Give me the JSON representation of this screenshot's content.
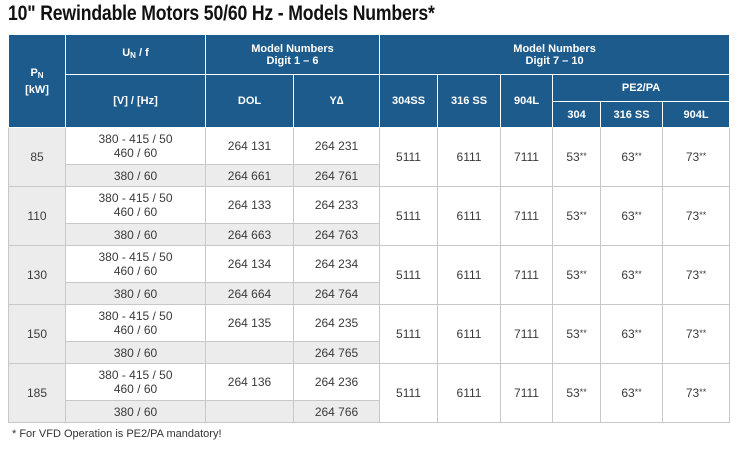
{
  "title": "10\" Rewindable Motors 50/60 Hz - Models Numbers*",
  "headers": {
    "pn_main": "P",
    "pn_sub": "N",
    "pn_unit": "[kW]",
    "un_main": "U",
    "un_sub": "N",
    "un_suffix": " / f",
    "un_unit": "[V] / [Hz]",
    "model_1_6_line1": "Model Numbers",
    "model_1_6_line2": "Digit 1 – 6",
    "dol": "DOL",
    "yd": "Y∆",
    "model_7_10_line1": "Model Numbers",
    "model_7_10_line2": "Digit 7 – 10",
    "ss304": "304SS",
    "ss316": "316 SS",
    "l904": "904L",
    "pe2pa": "PE2/PA",
    "pe_304": "304",
    "pe_316": "316 SS",
    "pe_904": "904L"
  },
  "rows": [
    {
      "pn": "85",
      "volt_a1": "380 - 415 / 50",
      "volt_a2": "460 / 60",
      "volt_b": "380 / 60",
      "dol_a": "264 131",
      "dol_b": "264 661",
      "yd_a": "264 231",
      "yd_b": "264 761",
      "ss304": "5111",
      "ss316": "6111",
      "l904": "7111",
      "pe304": "53",
      "pe316": "63",
      "pe904": "73",
      "stars": "**"
    },
    {
      "pn": "110",
      "volt_a1": "380 - 415 / 50",
      "volt_a2": "460 / 60",
      "volt_b": "380 / 60",
      "dol_a": "264 133",
      "dol_b": "264 663",
      "yd_a": "264 233",
      "yd_b": "264 763",
      "ss304": "5111",
      "ss316": "6111",
      "l904": "7111",
      "pe304": "53",
      "pe316": "63",
      "pe904": "73",
      "stars": "**"
    },
    {
      "pn": "130",
      "volt_a1": "380 - 415 / 50",
      "volt_a2": "460 / 60",
      "volt_b": "380 / 60",
      "dol_a": "264 134",
      "dol_b": "264 664",
      "yd_a": "264 234",
      "yd_b": "264 764",
      "ss304": "5111",
      "ss316": "6111",
      "l904": "7111",
      "pe304": "53",
      "pe316": "63",
      "pe904": "73",
      "stars": "**"
    },
    {
      "pn": "150",
      "volt_a1": "380 - 415 / 50",
      "volt_a2": "460 / 60",
      "volt_b": "380 / 60",
      "dol_a": "264 135",
      "dol_b": "",
      "yd_a": "264 235",
      "yd_b": "264 765",
      "ss304": "5111",
      "ss316": "6111",
      "l904": "7111",
      "pe304": "53",
      "pe316": "63",
      "pe904": "73",
      "stars": "**"
    },
    {
      "pn": "185",
      "volt_a1": "380 - 415 / 50",
      "volt_a2": "460 / 60",
      "volt_b": "380 / 60",
      "dol_a": "264 136",
      "dol_b": "",
      "yd_a": "264 236",
      "yd_b": "264 766",
      "ss304": "5111",
      "ss316": "6111",
      "l904": "7111",
      "pe304": "53",
      "pe316": "63",
      "pe904": "73",
      "stars": "**"
    }
  ],
  "footnote": "* For VFD Operation is PE2/PA mandatory!"
}
